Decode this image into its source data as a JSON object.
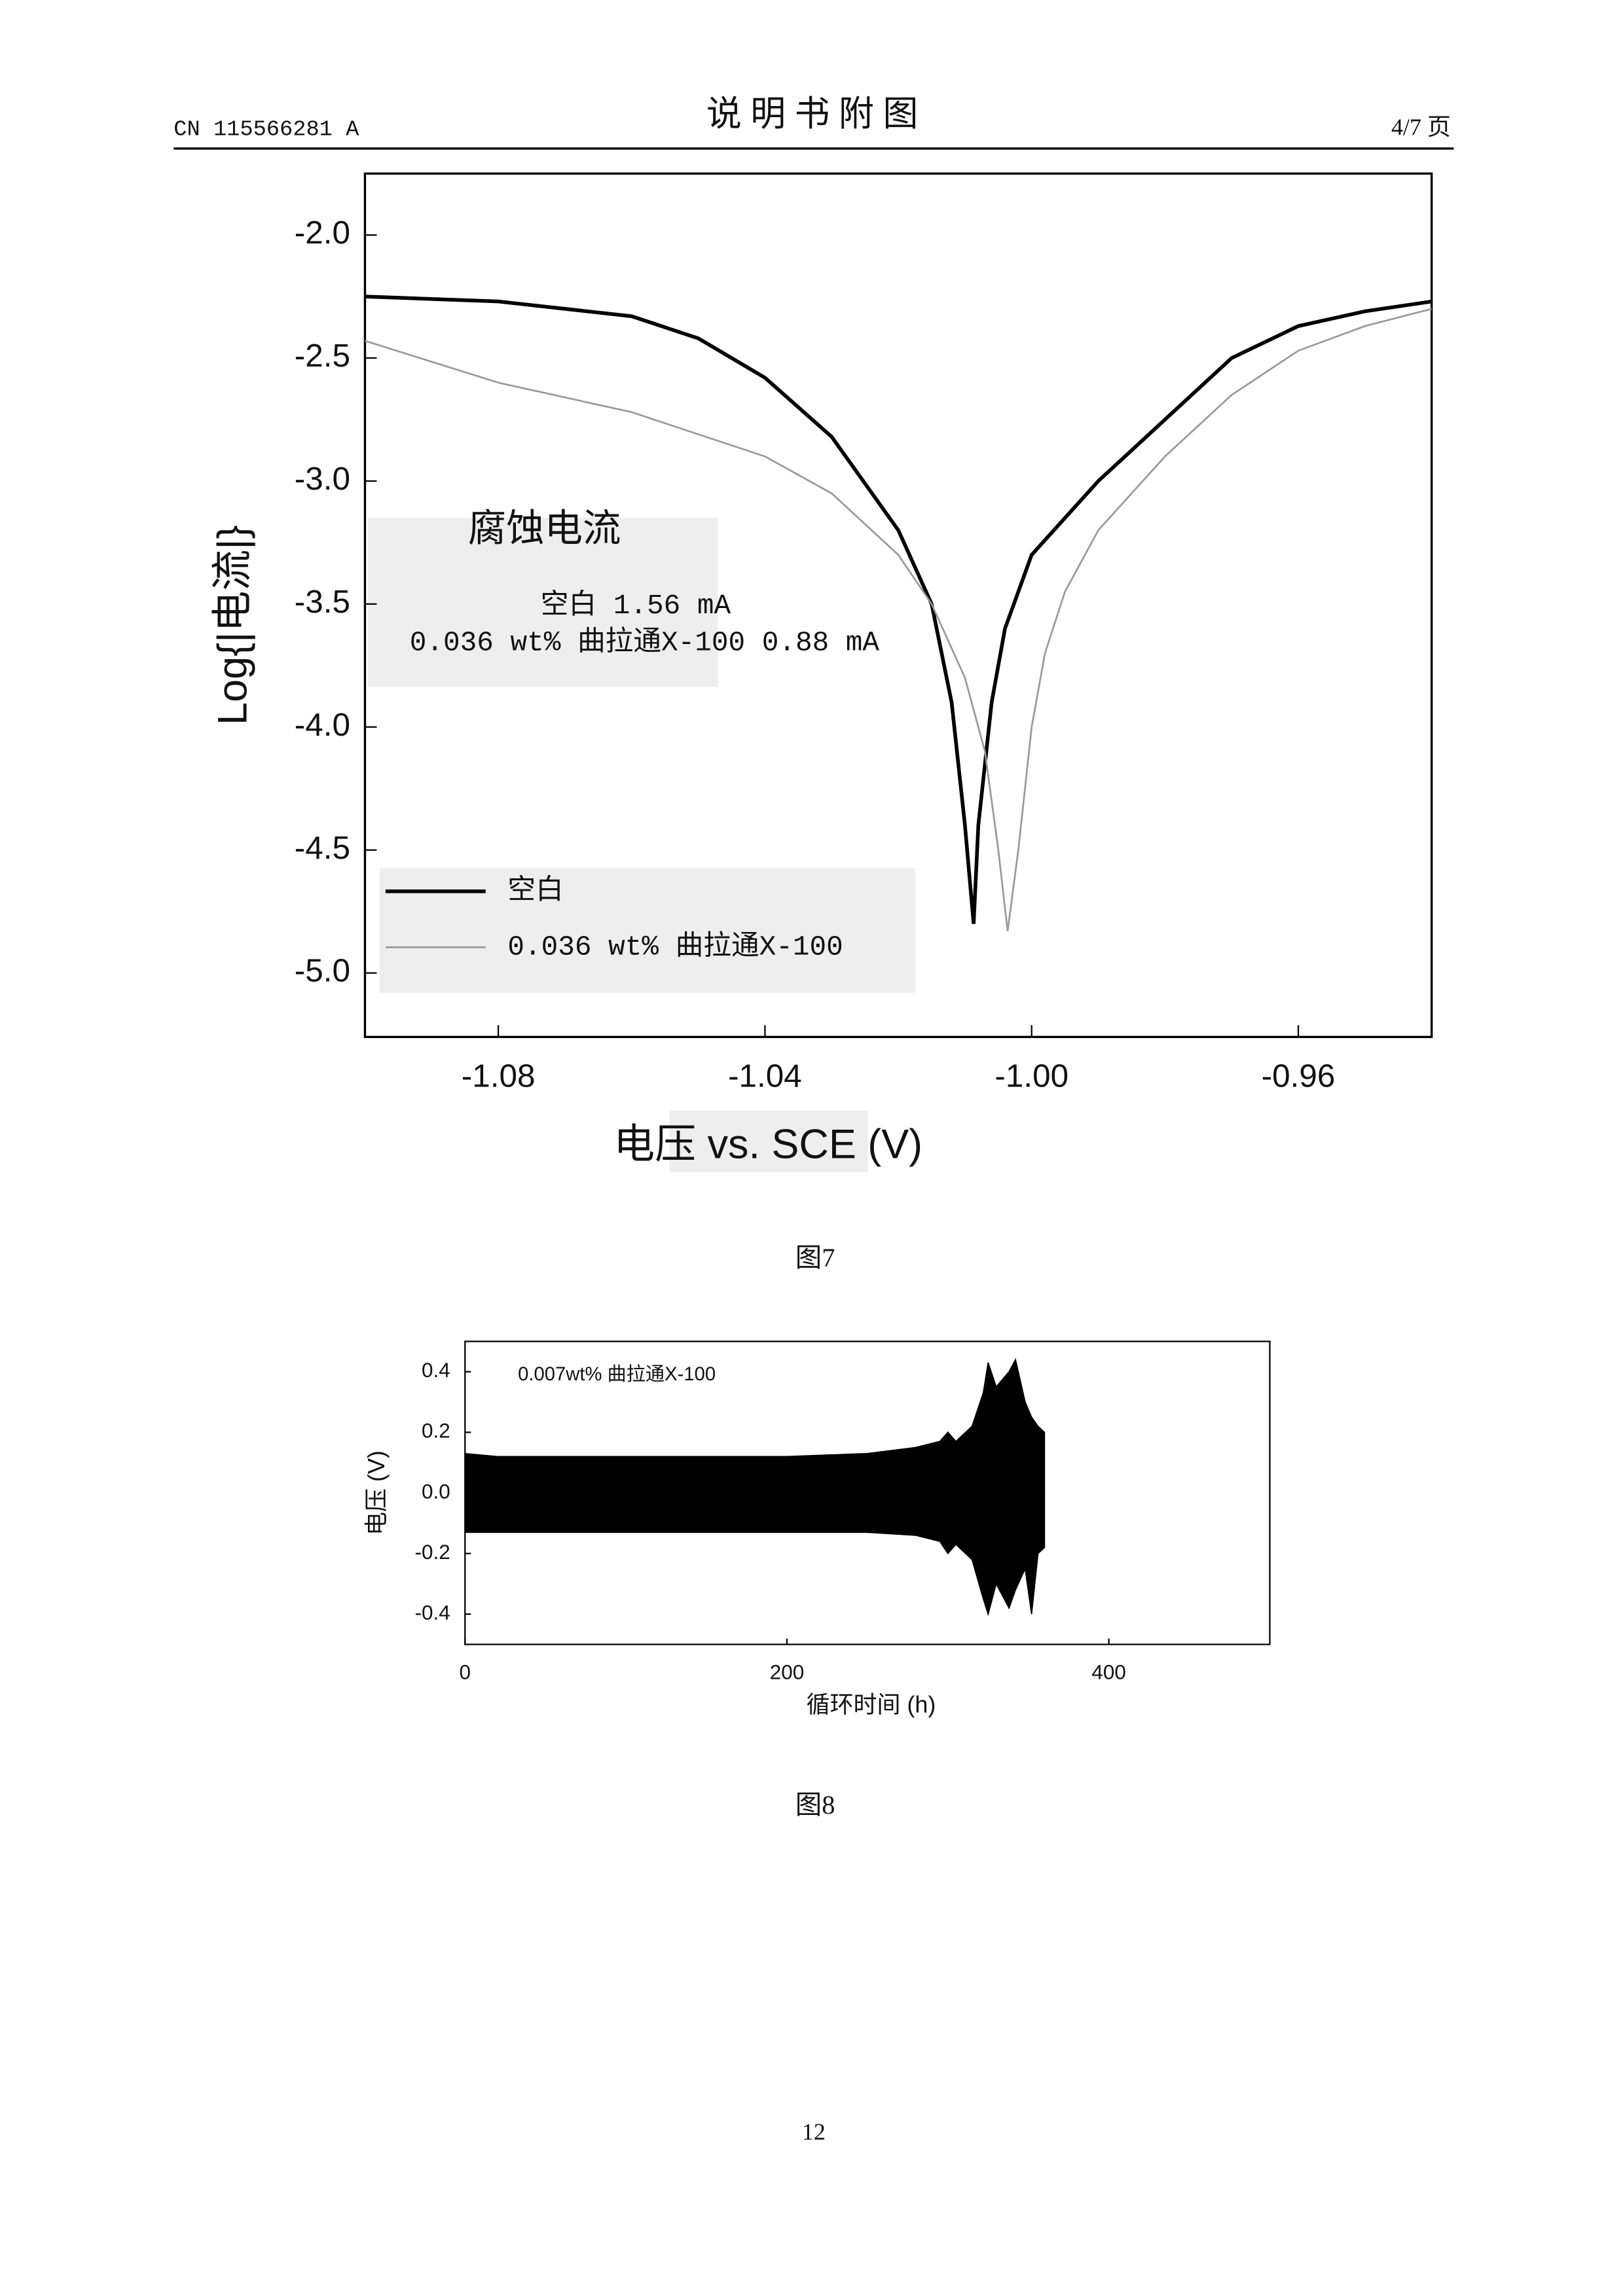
{
  "header": {
    "left": "CN 115566281 A",
    "title": "说 明 书 附 图",
    "right": "4/7 页"
  },
  "captions": [
    "图7",
    "图8"
  ],
  "page_number": "12",
  "chart_data": [
    {
      "type": "line",
      "xlabel": "电压 vs. SCE (V)",
      "ylabel": "Log{|电流|}",
      "annotations": [
        "腐蚀电流",
        "空白 1.56 mA",
        "0.036 wt% 曲拉通X-100 0.88 mA"
      ],
      "legend": "lower left",
      "xlim": [
        -1.1,
        -0.94
      ],
      "ylim": [
        -5.26,
        -1.75
      ],
      "xticks": [
        -1.08,
        -1.04,
        {
          "value": -1.0,
          "label": "-1.00"
        },
        -0.96
      ],
      "yticks": [
        {
          "value": -2,
          "label": "-2.0"
        },
        -2.5,
        {
          "value": -3,
          "label": "-3.0"
        },
        -3.5,
        {
          "value": -4,
          "label": "-4.0"
        },
        -4.5,
        {
          "value": -5,
          "label": "-5.0"
        }
      ],
      "series": [
        {
          "name": "空白",
          "color": "#000000",
          "x": [
            -1.1,
            -1.08,
            -1.06,
            -1.05,
            -1.04,
            -1.03,
            -1.02,
            -1.015,
            -1.012,
            -1.01,
            -1.0087,
            -1.008,
            -1.006,
            -1.004,
            -1.0,
            -0.99,
            -0.98,
            -0.97,
            -0.96,
            -0.95,
            -0.94
          ],
          "values": [
            -2.25,
            -2.27,
            -2.33,
            -2.42,
            -2.58,
            -2.82,
            -3.2,
            -3.5,
            -3.9,
            -4.4,
            -4.8,
            -4.4,
            -3.9,
            -3.6,
            -3.3,
            -3.0,
            -2.75,
            -2.5,
            -2.37,
            -2.31,
            -2.27
          ]
        },
        {
          "name": "0.036 wt% 曲拉通X-100",
          "color": "#999999",
          "x": [
            -1.1,
            -1.08,
            -1.06,
            -1.04,
            -1.03,
            -1.02,
            -1.015,
            -1.01,
            -1.007,
            -1.005,
            -1.0036,
            -1.002,
            -1.0,
            -0.998,
            -0.995,
            -0.99,
            -0.98,
            -0.97,
            -0.96,
            -0.95,
            -0.94
          ],
          "values": [
            -2.43,
            -2.6,
            -2.72,
            -2.9,
            -3.05,
            -3.3,
            -3.5,
            -3.8,
            -4.1,
            -4.5,
            -4.83,
            -4.5,
            -4.0,
            -3.7,
            -3.45,
            -3.2,
            -2.9,
            -2.65,
            -2.47,
            -2.37,
            -2.3
          ]
        }
      ]
    },
    {
      "type": "band",
      "xlabel": "循环时间 (h)",
      "ylabel": "电压 (V)",
      "annotations": [
        "0.007wt% 曲拉通X-100"
      ],
      "color": "#000000",
      "xlim": [
        0,
        500
      ],
      "ylim": [
        -0.5,
        0.5
      ],
      "xticks": [
        0,
        200,
        400
      ],
      "yticks": [
        0.4,
        0.2,
        {
          "value": 0,
          "label": "0.0"
        },
        -0.2,
        -0.4
      ],
      "x": [
        0,
        20,
        100,
        200,
        250,
        280,
        295,
        300,
        305,
        315,
        322,
        325,
        330,
        338,
        342,
        348,
        352,
        356,
        360
      ],
      "upper": [
        0.13,
        0.12,
        0.12,
        0.12,
        0.13,
        0.15,
        0.17,
        0.2,
        0.17,
        0.22,
        0.33,
        0.43,
        0.35,
        0.4,
        0.44,
        0.3,
        0.25,
        0.22,
        0.2
      ],
      "lower": [
        -0.13,
        -0.13,
        -0.13,
        -0.13,
        -0.13,
        -0.14,
        -0.16,
        -0.2,
        -0.17,
        -0.22,
        -0.35,
        -0.4,
        -0.3,
        -0.38,
        -0.32,
        -0.25,
        -0.4,
        -0.2,
        -0.18
      ]
    }
  ]
}
